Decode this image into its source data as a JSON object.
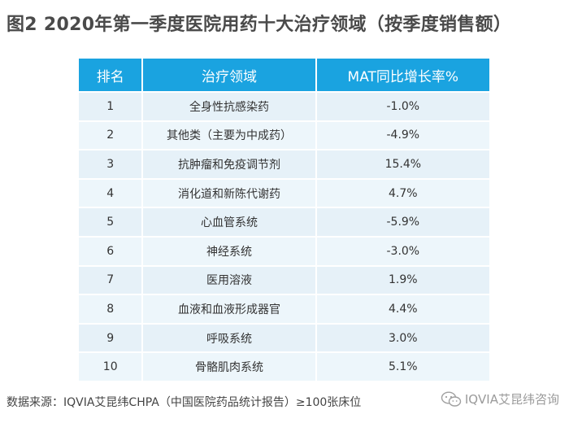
{
  "title": "图2 2020年第一季度医院用药十大治疗领域（按季度销售额）",
  "table": {
    "headers": [
      "排名",
      "治疗领域",
      "MAT同比增长率%"
    ],
    "rows": [
      {
        "rank": "1",
        "area": "全身性抗感染药",
        "mat": "-1.0%"
      },
      {
        "rank": "2",
        "area": "其他类（主要为中成药）",
        "mat": "-4.9%"
      },
      {
        "rank": "3",
        "area": "抗肿瘤和免疫调节剂",
        "mat": "15.4%"
      },
      {
        "rank": "4",
        "area": "消化道和新陈代谢药",
        "mat": "4.7%"
      },
      {
        "rank": "5",
        "area": "心血管系统",
        "mat": "-5.9%"
      },
      {
        "rank": "6",
        "area": "神经系统",
        "mat": "-3.0%"
      },
      {
        "rank": "7",
        "area": "医用溶液",
        "mat": "1.9%"
      },
      {
        "rank": "8",
        "area": "血液和血液形成器官",
        "mat": "4.4%"
      },
      {
        "rank": "9",
        "area": "呼吸系统",
        "mat": "3.0%"
      },
      {
        "rank": "10",
        "area": "骨骼肌肉系统",
        "mat": "5.1%"
      }
    ]
  },
  "footer": {
    "source": "数据来源：IQVIA艾昆纬CHPA（中国医院药品统计报告）≥100张床位",
    "brand": "IQVIA艾昆纬咨询",
    "brand_icon": "wechat-icon"
  },
  "colors": {
    "header_bg": "#1aa3e0",
    "row_bg": "#e6f1f8"
  }
}
